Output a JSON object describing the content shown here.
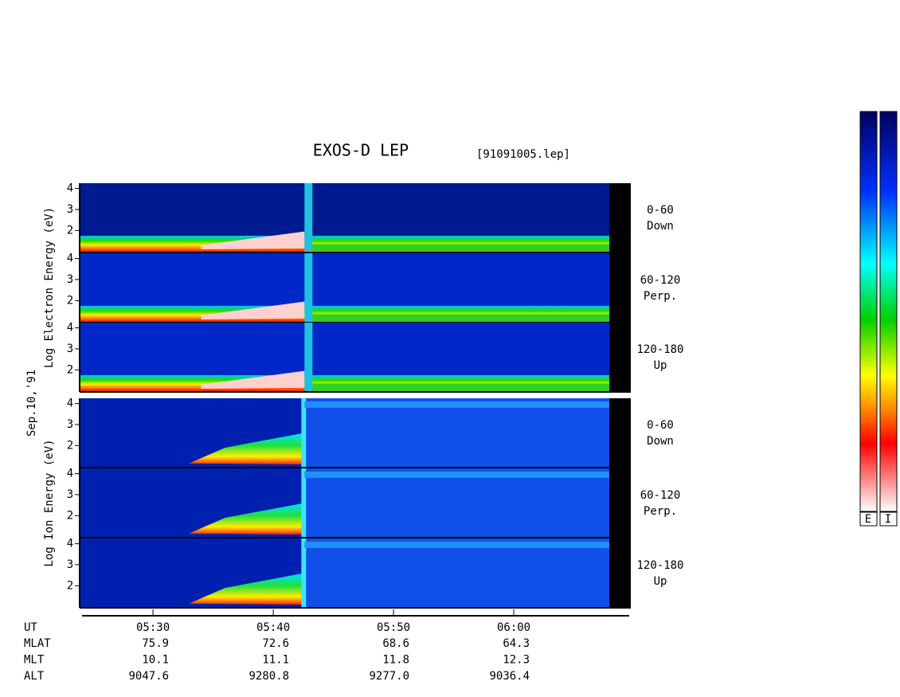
{
  "chart_data": {
    "type": "spectrogram",
    "title": "EXOS-D LEP",
    "file": "[91091005.lep]",
    "date": "Sep.10,'91",
    "groups": [
      {
        "ylabel": "Log Electron Energy (eV)",
        "panels": [
          {
            "name": "0-60",
            "direction": "Down"
          },
          {
            "name": "60-120",
            "direction": "Perp."
          },
          {
            "name": "120-180",
            "direction": "Up"
          }
        ]
      },
      {
        "ylabel": "Log Ion Energy (eV)",
        "panels": [
          {
            "name": "0-60",
            "direction": "Down"
          },
          {
            "name": "60-120",
            "direction": "Perp."
          },
          {
            "name": "120-180",
            "direction": "Up"
          }
        ]
      }
    ],
    "ylim": [
      0.95,
      4.25
    ],
    "yticks": [
      2,
      3,
      4
    ],
    "xlabel": "UT",
    "xlim": [
      324.1,
      369.6
    ],
    "xticks": [
      {
        "value": 330,
        "label": "05:30"
      },
      {
        "value": 340,
        "label": "05:40"
      },
      {
        "value": 350,
        "label": "05:50"
      },
      {
        "value": 360,
        "label": "06:00"
      }
    ],
    "orbit": [
      {
        "name": "MLAT",
        "values": [
          75.9,
          72.6,
          68.6,
          64.3
        ]
      },
      {
        "name": "MLT",
        "values": [
          10.1,
          11.1,
          11.8,
          12.3
        ]
      },
      {
        "name": "ALT",
        "values": [
          9047.6,
          9280.8,
          9277,
          9036.4
        ],
        "value_labels": [
          "9047.6",
          "9280.8",
          "9277.0",
          "9036.4"
        ]
      }
    ],
    "colorbar_labels": [
      "E",
      "I"
    ]
  }
}
